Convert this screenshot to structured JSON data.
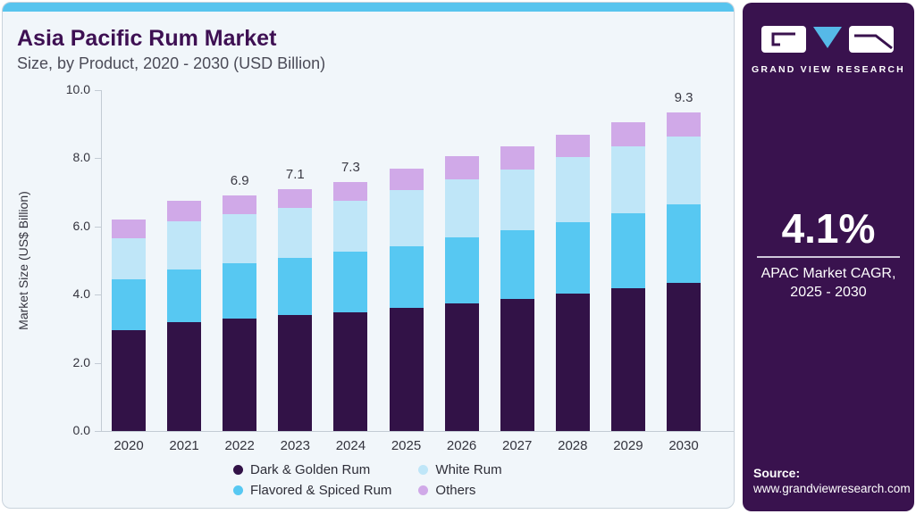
{
  "header": {
    "title": "Asia Pacific Rum Market",
    "subtitle": "Size, by Product, 2020 - 2030 (USD Billion)"
  },
  "chart_data": {
    "type": "bar",
    "stacked": true,
    "title": "Asia Pacific Rum Market Size, by Product, 2020 - 2030 (USD Billion)",
    "categories": [
      "2020",
      "2021",
      "2022",
      "2023",
      "2024",
      "2025",
      "2026",
      "2027",
      "2028",
      "2029",
      "2030"
    ],
    "series": [
      {
        "name": "Dark & Golden Rum",
        "color": "#321247",
        "values": [
          2.95,
          3.2,
          3.3,
          3.4,
          3.48,
          3.6,
          3.75,
          3.88,
          4.03,
          4.18,
          4.35
        ]
      },
      {
        "name": "Flavored & Spiced Rum",
        "color": "#57c8f2",
        "values": [
          1.5,
          1.55,
          1.62,
          1.68,
          1.77,
          1.83,
          1.92,
          2.02,
          2.1,
          2.2,
          2.3
        ]
      },
      {
        "name": "White Rum",
        "color": "#bfe6f8",
        "values": [
          1.2,
          1.4,
          1.43,
          1.47,
          1.5,
          1.65,
          1.7,
          1.78,
          1.9,
          1.97,
          2.0
        ]
      },
      {
        "name": "Others",
        "color": "#d0a9e8",
        "values": [
          0.55,
          0.6,
          0.55,
          0.55,
          0.55,
          0.62,
          0.68,
          0.67,
          0.67,
          0.7,
          0.7
        ]
      }
    ],
    "total_labels": {
      "2022": "6.9",
      "2023": "7.1",
      "2024": "7.3",
      "2030": "9.3"
    },
    "xlabel": "",
    "ylabel": "Market Size (US$ Billion)",
    "ylim": [
      0,
      10
    ],
    "yticks": [
      0,
      2,
      4,
      6,
      8,
      10
    ],
    "ytick_labels": [
      "0.0",
      "2.0",
      "4.0",
      "6.0",
      "8.0",
      "10.0"
    ],
    "grid": false,
    "legend_position": "bottom"
  },
  "legend": {
    "items": [
      {
        "label": "Dark & Golden Rum",
        "color": "#321247"
      },
      {
        "label": "Flavored & Spiced Rum",
        "color": "#57c8f2"
      },
      {
        "label": "White Rum",
        "color": "#bfe6f8"
      },
      {
        "label": "Others",
        "color": "#d0a9e8"
      }
    ]
  },
  "sidebar": {
    "brand": "GRAND VIEW RESEARCH",
    "cagr_value": "4.1%",
    "cagr_line1": "APAC Market CAGR,",
    "cagr_line2": "2025 - 2030",
    "source_label": "Source:",
    "source_url": "www.grandviewresearch.com",
    "background": "#39124e",
    "logo_blue": "#56b9e8"
  },
  "theme": {
    "top_strip": "#58c4ee",
    "card_bg": "#f1f6fa",
    "card_border": "#c9d3dc",
    "title_color": "#3e1053"
  }
}
